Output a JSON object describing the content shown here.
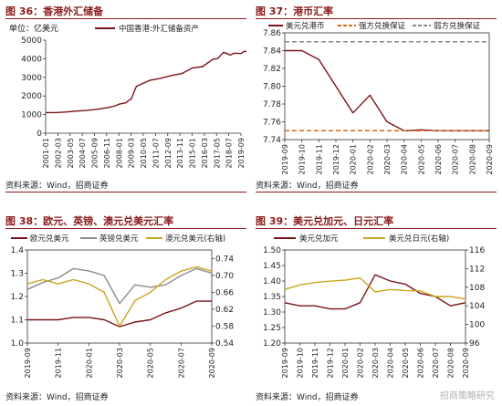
{
  "colors": {
    "maroon": "#7b1319",
    "gray": "#8c8c8c",
    "gold": "#c8a51d",
    "dash_orange": "#d06a1a",
    "dash_gray": "#8a8a8a",
    "title": "#8b1a1a"
  },
  "source": "资料来源：Wind，招商证券",
  "watermark": "招商策略研究",
  "chart_data": [
    {
      "id": "fig36",
      "title": "图 36：香港外汇储备",
      "type": "line",
      "unit_label": "单位：亿美元",
      "series": [
        {
          "name": "中国香港:外汇储备资产",
          "color": "#7b1319",
          "x": [
            "2001-01",
            "2002-01",
            "2003-01",
            "2004-01",
            "2005-01",
            "2006-01",
            "2007-01",
            "2007-09",
            "2008-01",
            "2008-09",
            "2009-01",
            "2009-03",
            "2009-09",
            "2010-01",
            "2011-01",
            "2012-01",
            "2013-01",
            "2014-01",
            "2015-01",
            "2016-01",
            "2017-01",
            "2017-06",
            "2018-01",
            "2018-09",
            "2019-01",
            "2019-09",
            "2020-01",
            "2020-06",
            "2020-09"
          ],
          "values": [
            1110,
            1110,
            1140,
            1190,
            1230,
            1290,
            1380,
            1470,
            1560,
            1630,
            1790,
            1820,
            2520,
            2600,
            2850,
            2950,
            3100,
            3200,
            3500,
            3580,
            3980,
            4000,
            4350,
            4200,
            4300,
            4280,
            4400,
            4360,
            4470
          ]
        }
      ],
      "x_ticks": [
        "2001-01",
        "2002-03",
        "2003-05",
        "2004-07",
        "2005-09",
        "2006-11",
        "2008-01",
        "2009-03",
        "2010-05",
        "2011-07",
        "2012-09",
        "2013-11",
        "2015-01",
        "2016-03",
        "2017-05",
        "2018-07",
        "2019-09"
      ],
      "y_ticks": [
        0,
        1000,
        2000,
        3000,
        4000,
        5000
      ],
      "ylim": [
        0,
        5000
      ]
    },
    {
      "id": "fig37",
      "title": "图 37：港币汇率",
      "type": "line",
      "series": [
        {
          "name": "美元兑港币",
          "color": "#7b1319",
          "x": [
            "2019-09",
            "2019-10",
            "2019-11",
            "2019-12",
            "2020-01",
            "2020-02",
            "2020-03",
            "2020-04",
            "2020-05",
            "2020-06",
            "2020-07",
            "2020-08",
            "2020-09"
          ],
          "values": [
            7.84,
            7.84,
            7.83,
            7.8,
            7.77,
            7.79,
            7.76,
            7.75,
            7.751,
            7.75,
            7.75,
            7.75,
            7.75
          ]
        },
        {
          "name": "强方兑换保证",
          "color": "#d06a1a",
          "dashed": true,
          "value": 7.75
        },
        {
          "name": "弱方兑换保证",
          "color": "#8a8a8a",
          "dashed": true,
          "value": 7.85
        }
      ],
      "x_ticks": [
        "2019-09",
        "2019-10",
        "2019-11",
        "2019-12",
        "2020-01",
        "2020-02",
        "2020-03",
        "2020-04",
        "2020-05",
        "2020-06",
        "2020-07",
        "2020-08",
        "2020-09"
      ],
      "y_ticks": [
        7.74,
        7.76,
        7.78,
        7.8,
        7.82,
        7.84,
        7.86
      ],
      "ylim": [
        7.74,
        7.86
      ]
    },
    {
      "id": "fig38",
      "title": "图 38：欧元、英镑、澳元兑美元汇率",
      "type": "line",
      "series": [
        {
          "name": "欧元兑美元",
          "axis": "left",
          "color": "#7b1319",
          "x": [
            "2019-09",
            "2019-10",
            "2019-11",
            "2019-12",
            "2020-01",
            "2020-02",
            "2020-03",
            "2020-04",
            "2020-05",
            "2020-06",
            "2020-07",
            "2020-08",
            "2020-09"
          ],
          "values": [
            1.1,
            1.1,
            1.1,
            1.11,
            1.11,
            1.1,
            1.07,
            1.09,
            1.1,
            1.13,
            1.15,
            1.18,
            1.18
          ]
        },
        {
          "name": "英镑兑美元",
          "axis": "left",
          "color": "#8c8c8c",
          "x": [
            "2019-09",
            "2019-10",
            "2019-11",
            "2019-12",
            "2020-01",
            "2020-02",
            "2020-03",
            "2020-04",
            "2020-05",
            "2020-06",
            "2020-07",
            "2020-08",
            "2020-09"
          ],
          "values": [
            1.23,
            1.26,
            1.28,
            1.32,
            1.31,
            1.29,
            1.17,
            1.25,
            1.24,
            1.25,
            1.29,
            1.32,
            1.3
          ]
        },
        {
          "name": "澳元兑美元(右轴)",
          "axis": "right",
          "color": "#c8a51d",
          "x": [
            "2019-09",
            "2019-10",
            "2019-11",
            "2019-12",
            "2020-01",
            "2020-02",
            "2020-03",
            "2020-04",
            "2020-05",
            "2020-06",
            "2020-07",
            "2020-08",
            "2020-09"
          ],
          "values": [
            0.68,
            0.69,
            0.68,
            0.69,
            0.68,
            0.66,
            0.58,
            0.64,
            0.66,
            0.69,
            0.71,
            0.72,
            0.71
          ]
        }
      ],
      "x_ticks": [
        "2019-09",
        "2019-11",
        "2020-01",
        "2020-03",
        "2020-05",
        "2020-07",
        "2020-09",
        "2019-09",
        "2019-11",
        "2020-01",
        "2020-03",
        "2020-05",
        "2020-07",
        "2020-09"
      ],
      "y_ticks": [
        1.0,
        1.1,
        1.2,
        1.3,
        1.4
      ],
      "ylim": [
        1.0,
        1.4
      ],
      "y2_ticks": [
        0.54,
        0.58,
        0.62,
        0.66,
        0.7,
        0.74
      ],
      "y2lim": [
        0.54,
        0.76
      ]
    },
    {
      "id": "fig39",
      "title": "图 39：美元兑加元、日元汇率",
      "type": "line",
      "series": [
        {
          "name": "美元兑加元",
          "axis": "left",
          "color": "#7b1319",
          "x": [
            "2019-09",
            "2019-10",
            "2019-11",
            "2019-12",
            "2020-01",
            "2020-02",
            "2020-03",
            "2020-04",
            "2020-05",
            "2020-06",
            "2020-07",
            "2020-08",
            "2020-09"
          ],
          "values": [
            1.33,
            1.32,
            1.32,
            1.31,
            1.31,
            1.33,
            1.42,
            1.4,
            1.39,
            1.36,
            1.35,
            1.32,
            1.33
          ]
        },
        {
          "name": "美元兑日元(右轴)",
          "axis": "right",
          "color": "#c8a51d",
          "x": [
            "2019-09",
            "2019-10",
            "2019-11",
            "2019-12",
            "2020-01",
            "2020-02",
            "2020-03",
            "2020-04",
            "2020-05",
            "2020-06",
            "2020-07",
            "2020-08",
            "2020-09"
          ],
          "values": [
            107.5,
            108.5,
            109.0,
            109.3,
            109.5,
            110.0,
            107.0,
            107.5,
            107.3,
            107.2,
            106.0,
            106.0,
            105.5
          ]
        }
      ],
      "x_ticks": [
        "2019-09",
        "2019-10",
        "2019-11",
        "2019-12",
        "2020-01",
        "2020-02",
        "2020-03",
        "2020-04",
        "2020-05",
        "2020-06",
        "2020-07",
        "2020-08",
        "2020-09",
        "2019-09",
        "2019-10",
        "2019-11",
        "2019-12",
        "2020-01",
        "2020-02",
        "2020-03",
        "2020-04",
        "2020-05",
        "2020-06",
        "2020-07",
        "2020-08",
        "2020-09"
      ],
      "y_ticks": [
        1.2,
        1.25,
        1.3,
        1.35,
        1.4,
        1.45,
        1.5
      ],
      "ylim": [
        1.2,
        1.5
      ],
      "y2_ticks": [
        96,
        100,
        104,
        108,
        112,
        116
      ],
      "y2lim": [
        96,
        116
      ]
    }
  ]
}
